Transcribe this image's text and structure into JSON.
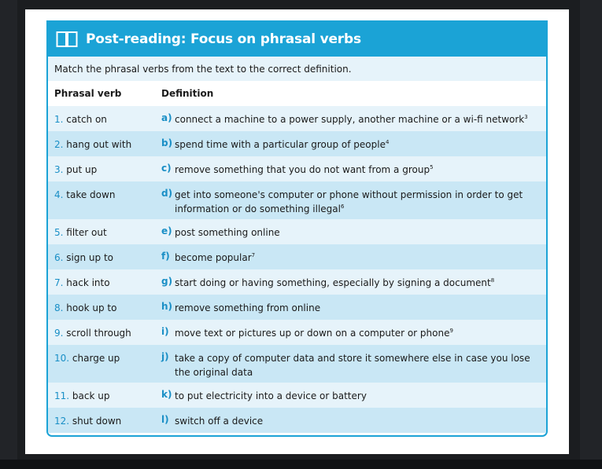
{
  "header": {
    "title": "Post-reading: Focus on phrasal verbs",
    "icon": "book-icon"
  },
  "instruction": "Match the phrasal verbs from the text to the correct definition.",
  "columns": {
    "verb": "Phrasal verb",
    "definition": "Definition"
  },
  "colors": {
    "accent": "#1ba3d6",
    "row_light": "#e6f3fa",
    "row_dark": "#c9e7f5"
  },
  "rows": [
    {
      "num": "1.",
      "verb": "catch on",
      "letter": "a)",
      "def": "connect a machine to a power supply, another machine or a wi-fi network",
      "note": "3"
    },
    {
      "num": "2.",
      "verb": "hang out with",
      "letter": "b)",
      "def": "spend time with a particular group of people",
      "note": "4"
    },
    {
      "num": "3.",
      "verb": "put up",
      "letter": "c)",
      "def": "remove something that you do not want from a group",
      "note": "5"
    },
    {
      "num": "4.",
      "verb": "take down",
      "letter": "d)",
      "def": "get into someone's computer or phone without permission in order to get information or do something illegal",
      "note": "6"
    },
    {
      "num": "5.",
      "verb": "filter out",
      "letter": "e)",
      "def": "post something online",
      "note": ""
    },
    {
      "num": "6.",
      "verb": "sign up to",
      "letter": "f)",
      "def": "become popular",
      "note": "7"
    },
    {
      "num": "7.",
      "verb": "hack into",
      "letter": "g)",
      "def": "start doing or having something, especially by signing a document",
      "note": "8"
    },
    {
      "num": "8.",
      "verb": "hook up to",
      "letter": "h)",
      "def": "remove something from online",
      "note": ""
    },
    {
      "num": "9.",
      "verb": "scroll through",
      "letter": "i)",
      "def": "move text or pictures up or down on a computer or phone",
      "note": "9"
    },
    {
      "num": "10.",
      "verb": "charge up",
      "letter": "j)",
      "def": "take a copy of computer data and store it somewhere else in case you lose the original data",
      "note": ""
    },
    {
      "num": "11.",
      "verb": "back up",
      "letter": "k)",
      "def": "to put electricity into a device or battery",
      "note": ""
    },
    {
      "num": "12.",
      "verb": "shut down",
      "letter": "l)",
      "def": "switch off a device",
      "note": ""
    }
  ]
}
